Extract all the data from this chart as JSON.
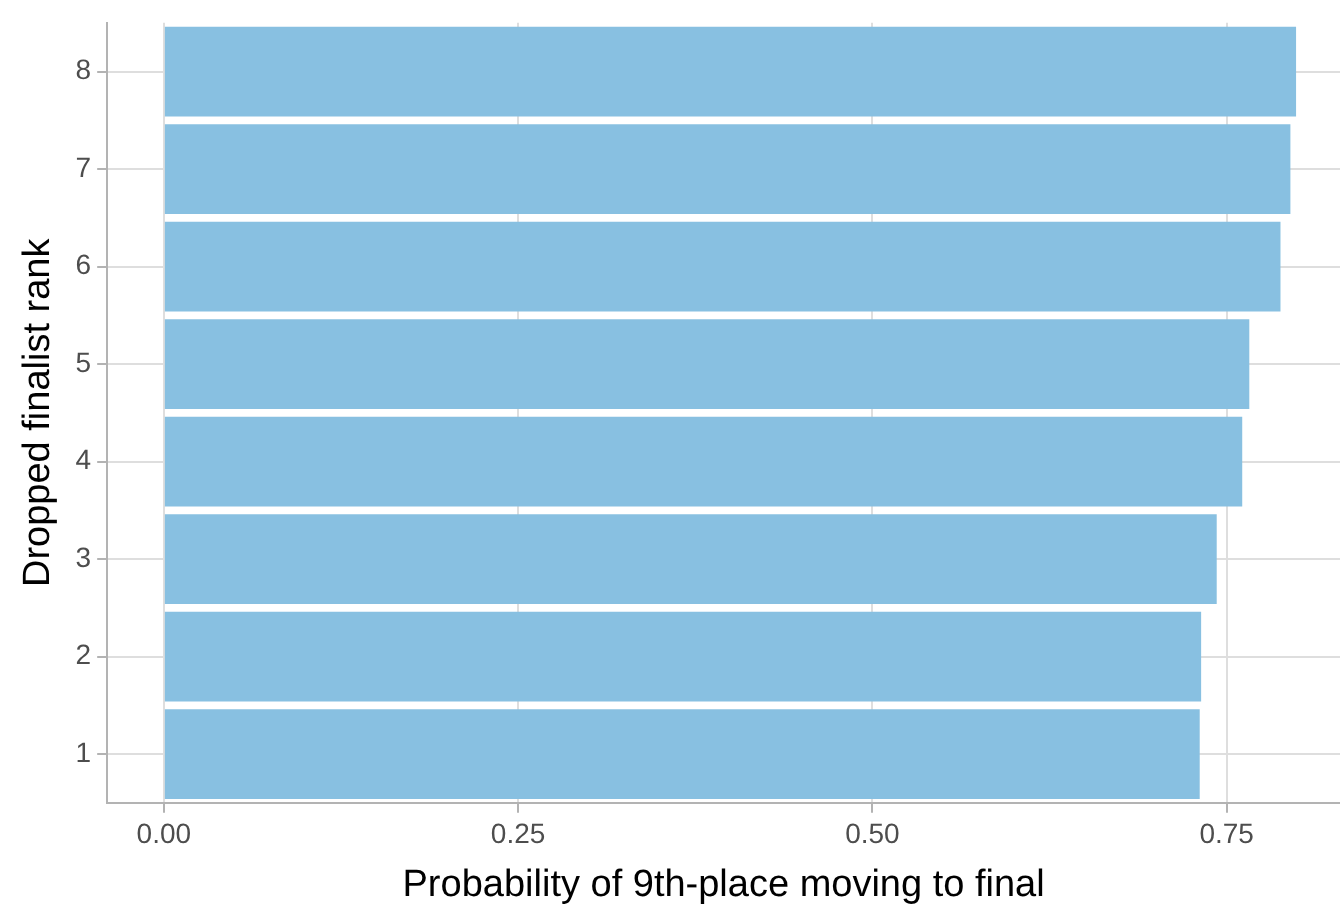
{
  "chart_data": {
    "type": "bar",
    "orientation": "horizontal",
    "xlabel": "Probability of 9th-place moving to final",
    "ylabel": "Dropped finalist rank",
    "categories": [
      "8",
      "7",
      "6",
      "5",
      "4",
      "3",
      "2",
      "1"
    ],
    "values": [
      0.799,
      0.795,
      0.788,
      0.766,
      0.761,
      0.743,
      0.732,
      0.731
    ],
    "color": "#88c0e1",
    "xlim": [
      -0.04,
      0.83
    ],
    "xticks": [
      {
        "value": 0,
        "label": "0.00"
      },
      0.25,
      {
        "value": 0.5,
        "label": "0.50"
      },
      0.75
    ],
    "grid": true
  }
}
